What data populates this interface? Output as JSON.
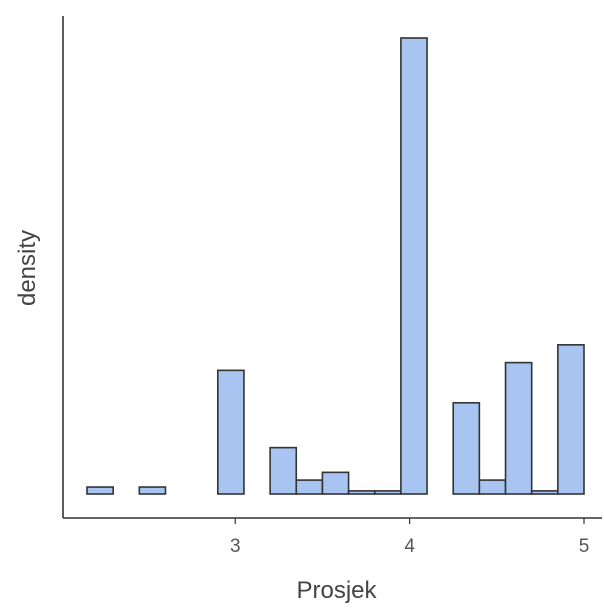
{
  "chart_data": {
    "type": "bar",
    "subtype": "histogram",
    "title": "",
    "xlabel": "Prosjek",
    "ylabel": "density",
    "x_ticks": [
      3,
      4,
      5
    ],
    "xlim": [
      2.0,
      5.15
    ],
    "y_ticks_shown": false,
    "bin_width": 0.15,
    "bins": [
      {
        "start": 2.15,
        "end": 2.3,
        "density": 0.09
      },
      {
        "start": 2.3,
        "end": 2.45,
        "density": 0.0
      },
      {
        "start": 2.45,
        "end": 2.6,
        "density": 0.09
      },
      {
        "start": 2.6,
        "end": 2.75,
        "density": 0.0
      },
      {
        "start": 2.75,
        "end": 2.9,
        "density": 0.0
      },
      {
        "start": 2.9,
        "end": 3.05,
        "density": 1.6
      },
      {
        "start": 3.05,
        "end": 3.2,
        "density": 0.0
      },
      {
        "start": 3.2,
        "end": 3.35,
        "density": 0.6
      },
      {
        "start": 3.35,
        "end": 3.5,
        "density": 0.18
      },
      {
        "start": 3.5,
        "end": 3.65,
        "density": 0.28
      },
      {
        "start": 3.65,
        "end": 3.8,
        "density": 0.04
      },
      {
        "start": 3.8,
        "end": 3.95,
        "density": 0.04
      },
      {
        "start": 3.95,
        "end": 4.1,
        "density": 5.9
      },
      {
        "start": 4.1,
        "end": 4.25,
        "density": 0.0
      },
      {
        "start": 4.25,
        "end": 4.4,
        "density": 1.18
      },
      {
        "start": 4.4,
        "end": 4.55,
        "density": 0.18
      },
      {
        "start": 4.55,
        "end": 4.7,
        "density": 1.7
      },
      {
        "start": 4.7,
        "end": 4.85,
        "density": 0.04
      },
      {
        "start": 4.85,
        "end": 5.0,
        "density": 1.93
      }
    ],
    "ylim": [
      0,
      6.2
    ],
    "grid": false,
    "colors": {
      "bar_fill": "#a8c4f0",
      "bar_stroke": "#333333",
      "axis": "#333333"
    }
  }
}
